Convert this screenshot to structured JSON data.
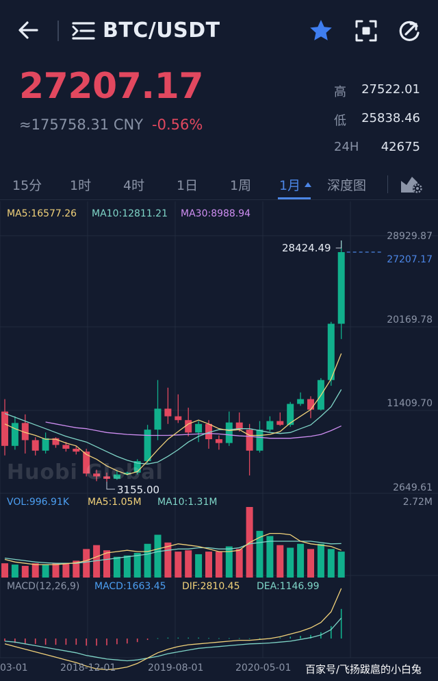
{
  "header": {
    "pair": "BTC/USDT",
    "icons": [
      "back-arrow-icon",
      "menu-list-icon",
      "star-icon",
      "scan-icon",
      "refresh-icon"
    ],
    "accent_color": "#3f7ef0"
  },
  "ticker": {
    "price": "27207.17",
    "cny": "≈175758.31 CNY",
    "change": "-0.56%",
    "high_label": "高",
    "high": "27522.01",
    "low_label": "低",
    "low": "25838.46",
    "vol_label": "24H",
    "vol": "42675",
    "down_color": "#e2485f"
  },
  "tabs": [
    {
      "label": "15分"
    },
    {
      "label": "1时"
    },
    {
      "label": "4时"
    },
    {
      "label": "1日"
    },
    {
      "label": "1周"
    },
    {
      "label": "1月"
    },
    {
      "label": "深度图"
    }
  ],
  "active_tab": "1月",
  "indicators": {
    "ma5": "MA5:16577.26",
    "ma10": "MA10:12811.21",
    "ma30": "MA30:8988.94",
    "vol": "VOL:996.91K",
    "vol_ma5": "MA5:1.05M",
    "vol_ma10": "MA10:1.31M",
    "macd_params": "MACD(12,26,9)",
    "macd": "MACD:1663.45",
    "dif": "DIF:2810.45",
    "dea": "DEA:1146.99"
  },
  "axis": {
    "price_ticks": [
      "28929.87",
      "20169.78",
      "11409.70",
      "2649.61"
    ],
    "current_price": "27207.17",
    "vol_max": "2.72M",
    "x_ticks": [
      "03-01",
      "2018-12-01",
      "2019-08-01",
      "2020-05-01"
    ]
  },
  "annotations": {
    "high_marker": "28424.49",
    "low_marker": "3155.00",
    "watermark_logo": "Huobi Global"
  },
  "footer": {
    "watermark": "百家号/飞扬跋扈的小白兔"
  },
  "chart_data": {
    "type": "candlestick",
    "ylim": [
      2649.61,
      28929.87
    ],
    "up_color": "#11b08c",
    "down_color": "#e2485f",
    "candles": [
      {
        "open": 10500,
        "close": 6900,
        "high": 11800,
        "low": 5900
      },
      {
        "open": 6900,
        "close": 9300,
        "high": 10000,
        "low": 6500
      },
      {
        "open": 9300,
        "close": 7500,
        "high": 10200,
        "low": 6100
      },
      {
        "open": 7500,
        "close": 6400,
        "high": 7800,
        "low": 5900
      },
      {
        "open": 6400,
        "close": 7700,
        "high": 8300,
        "low": 6100
      },
      {
        "open": 7700,
        "close": 7000,
        "high": 7800,
        "low": 6700
      },
      {
        "open": 7000,
        "close": 6600,
        "high": 7300,
        "low": 6300
      },
      {
        "open": 6600,
        "close": 6300,
        "high": 6900,
        "low": 6000
      },
      {
        "open": 6300,
        "close": 4000,
        "high": 6600,
        "low": 3700
      },
      {
        "open": 4000,
        "close": 3700,
        "high": 4400,
        "low": 3200
      },
      {
        "open": 3700,
        "close": 3450,
        "high": 4100,
        "low": 3155
      },
      {
        "open": 3450,
        "close": 3900,
        "high": 4300,
        "low": 3350
      },
      {
        "open": 3900,
        "close": 4100,
        "high": 4200,
        "low": 3800
      },
      {
        "open": 4100,
        "close": 5300,
        "high": 5500,
        "low": 3900
      },
      {
        "open": 5300,
        "close": 8600,
        "high": 9100,
        "low": 5100
      },
      {
        "open": 8600,
        "close": 10800,
        "high": 13800,
        "low": 7500
      },
      {
        "open": 10800,
        "close": 10000,
        "high": 13000,
        "low": 9200
      },
      {
        "open": 10000,
        "close": 9600,
        "high": 12300,
        "low": 9300
      },
      {
        "open": 9600,
        "close": 8300,
        "high": 10900,
        "low": 7900
      },
      {
        "open": 8300,
        "close": 9200,
        "high": 9500,
        "low": 7300
      },
      {
        "open": 9200,
        "close": 7600,
        "high": 9600,
        "low": 6600
      },
      {
        "open": 7600,
        "close": 7200,
        "high": 8000,
        "low": 6500
      },
      {
        "open": 7200,
        "close": 9350,
        "high": 10500,
        "low": 6900
      },
      {
        "open": 9350,
        "close": 8600,
        "high": 10400,
        "low": 8400
      },
      {
        "open": 8600,
        "close": 6400,
        "high": 9200,
        "low": 3800
      },
      {
        "open": 6400,
        "close": 8600,
        "high": 9500,
        "low": 6200
      },
      {
        "open": 8600,
        "close": 9500,
        "high": 10000,
        "low": 8400
      },
      {
        "open": 9500,
        "close": 9100,
        "high": 10400,
        "low": 9000
      },
      {
        "open": 9100,
        "close": 11300,
        "high": 11500,
        "low": 8900
      },
      {
        "open": 11300,
        "close": 11800,
        "high": 12500,
        "low": 11100
      },
      {
        "open": 11800,
        "close": 10700,
        "high": 12100,
        "low": 9800
      },
      {
        "open": 10700,
        "close": 13800,
        "high": 14000,
        "low": 10600
      },
      {
        "open": 13800,
        "close": 19700,
        "high": 19900,
        "low": 13200
      },
      {
        "open": 19700,
        "close": 27207.17,
        "high": 28424.49,
        "low": 18100
      }
    ],
    "ma5": [
      9200,
      8700,
      8300,
      8000,
      7600,
      7600,
      7200,
      6900,
      6000,
      5500,
      4800,
      4300,
      3900,
      4200,
      5300,
      6500,
      7600,
      8400,
      9200,
      9600,
      9200,
      8700,
      8500,
      8600,
      8000,
      8000,
      8100,
      8400,
      9300,
      10000,
      10700,
      12200,
      13900,
      16577.26
    ],
    "ma10": [
      10300,
      9900,
      9500,
      9100,
      8700,
      8300,
      7900,
      7600,
      7300,
      6800,
      6300,
      5800,
      5400,
      5100,
      5000,
      5200,
      5800,
      6500,
      7300,
      7900,
      8300,
      8600,
      8600,
      8700,
      8700,
      8500,
      8300,
      8200,
      8300,
      8700,
      9100,
      10000,
      11000,
      12811.21
    ],
    "ma30": [
      null,
      null,
      null,
      null,
      9400,
      9200,
      9000,
      8800,
      8700,
      8500,
      8300,
      8200,
      8100,
      8050,
      8000,
      8000,
      8000,
      8050,
      8100,
      8150,
      8200,
      8150,
      8050,
      7950,
      7900,
      7800,
      7700,
      7700,
      7700,
      7800,
      7900,
      8100,
      8500,
      8988.94
    ],
    "volume": [
      0.55,
      0.5,
      0.45,
      0.55,
      0.5,
      0.55,
      0.55,
      0.65,
      1.1,
      1.25,
      1.05,
      0.8,
      0.85,
      0.95,
      1.3,
      1.65,
      1.35,
      1.0,
      1.05,
      0.9,
      1.0,
      1.0,
      1.2,
      1.1,
      2.72,
      1.8,
      1.6,
      1.25,
      1.15,
      1.3,
      1.1,
      1.3,
      1.1,
      1.0
    ],
    "volume_ma5": [
      0.7,
      0.6,
      0.55,
      0.5,
      0.5,
      0.5,
      0.53,
      0.57,
      0.65,
      0.8,
      0.95,
      1.0,
      1.05,
      1.0,
      1.0,
      1.1,
      1.2,
      1.3,
      1.25,
      1.2,
      1.1,
      1.0,
      1.0,
      1.05,
      1.35,
      1.55,
      1.7,
      1.7,
      1.65,
      1.4,
      1.3,
      1.25,
      1.2,
      1.05
    ],
    "volume_ma10": [
      0.75,
      0.7,
      0.65,
      0.6,
      0.57,
      0.55,
      0.55,
      0.55,
      0.6,
      0.65,
      0.7,
      0.75,
      0.8,
      0.85,
      0.9,
      1.0,
      1.05,
      1.1,
      1.1,
      1.15,
      1.15,
      1.1,
      1.1,
      1.15,
      1.3,
      1.35,
      1.4,
      1.4,
      1.4,
      1.4,
      1.4,
      1.35,
      1.3,
      1.31
    ],
    "macd_hist": [
      -0.15,
      -0.25,
      -0.3,
      -0.3,
      -0.35,
      -0.35,
      -0.35,
      -0.35,
      -0.4,
      -0.4,
      -0.38,
      -0.32,
      -0.28,
      -0.2,
      -0.08,
      0.02,
      0.05,
      0.05,
      0.05,
      0.05,
      0.03,
      0.02,
      0.02,
      0.02,
      0.01,
      0.02,
      0.03,
      0.05,
      0.1,
      0.15,
      0.2,
      0.35,
      0.7,
      1.66
    ],
    "dif": [
      -0.3,
      -0.45,
      -0.6,
      -0.75,
      -0.9,
      -1.05,
      -1.2,
      -1.35,
      -1.55,
      -1.7,
      -1.75,
      -1.7,
      -1.6,
      -1.4,
      -1.1,
      -0.8,
      -0.6,
      -0.45,
      -0.35,
      -0.3,
      -0.25,
      -0.2,
      -0.15,
      -0.1,
      -0.1,
      -0.05,
      0.0,
      0.1,
      0.25,
      0.4,
      0.6,
      0.9,
      1.5,
      2.81
    ],
    "dea": [
      -0.15,
      -0.2,
      -0.3,
      -0.4,
      -0.5,
      -0.6,
      -0.7,
      -0.8,
      -0.95,
      -1.05,
      -1.15,
      -1.2,
      -1.25,
      -1.2,
      -1.1,
      -1.0,
      -0.85,
      -0.75,
      -0.65,
      -0.55,
      -0.5,
      -0.45,
      -0.4,
      -0.35,
      -0.3,
      -0.28,
      -0.25,
      -0.2,
      -0.15,
      -0.05,
      0.05,
      0.2,
      0.5,
      1.15
    ]
  }
}
